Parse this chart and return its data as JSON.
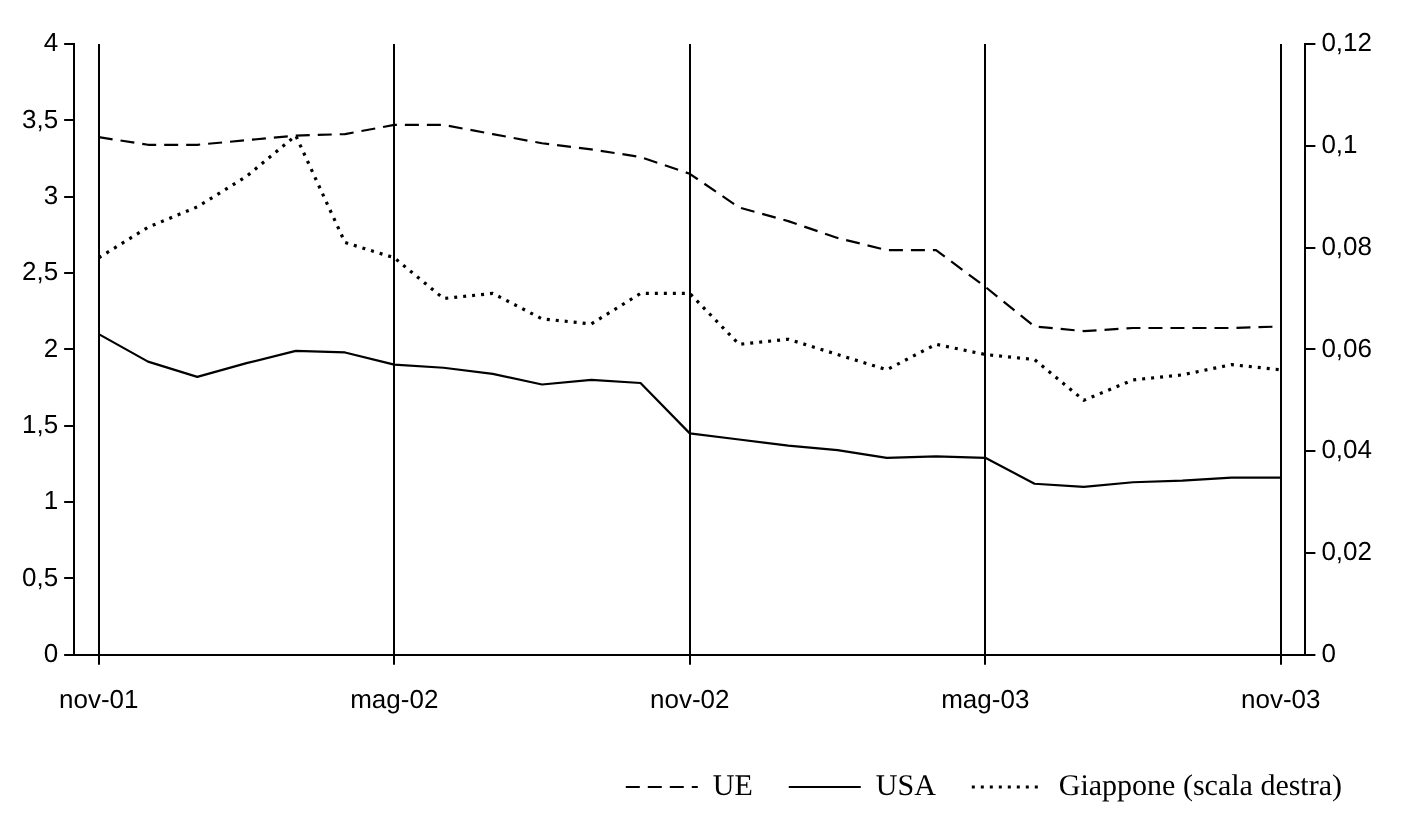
{
  "chart_data": {
    "type": "line",
    "categories": [
      "nov-01",
      null,
      null,
      null,
      null,
      null,
      "mag-02",
      null,
      null,
      null,
      null,
      null,
      "nov-02",
      null,
      null,
      null,
      null,
      null,
      "mag-03",
      null,
      null,
      null,
      null,
      null,
      "nov-03"
    ],
    "ylim": [
      0,
      4
    ],
    "yticks": [
      0,
      {
        "value": 0.5,
        "label": "0,5"
      },
      1,
      {
        "value": 1.5,
        "label": "1,5"
      },
      2,
      {
        "value": 2.5,
        "label": "2,5"
      },
      3,
      {
        "value": 3.5,
        "label": "3,5"
      },
      4
    ],
    "y2lim": [
      0,
      0.12
    ],
    "y2ticks": [
      0,
      {
        "value": 0.02,
        "label": "0,02"
      },
      {
        "value": 0.04,
        "label": "0,04"
      },
      {
        "value": 0.06,
        "label": "0,06"
      },
      {
        "value": 0.08,
        "label": "0,08"
      },
      {
        "value": 0.1,
        "label": "0,1"
      },
      {
        "value": 0.12,
        "label": "0,12"
      }
    ],
    "series": [
      {
        "name": "UE",
        "color": "#000000",
        "line_style": "dashed",
        "values": [
          3.39,
          3.34,
          3.34,
          3.37,
          3.4,
          3.41,
          3.47,
          3.47,
          3.41,
          3.35,
          3.31,
          3.26,
          3.15,
          2.93,
          2.84,
          2.73,
          2.65,
          2.65,
          2.41,
          2.15,
          2.12,
          2.14,
          2.14,
          2.14,
          2.15
        ]
      },
      {
        "name": "USA",
        "color": "#000000",
        "line_style": "solid",
        "values": [
          2.1,
          1.92,
          1.82,
          1.91,
          1.99,
          1.98,
          1.9,
          1.88,
          1.84,
          1.77,
          1.8,
          1.78,
          1.45,
          1.41,
          1.37,
          1.34,
          1.29,
          1.3,
          1.29,
          1.12,
          1.1,
          1.13,
          1.14,
          1.16,
          1.16
        ]
      },
      {
        "name": "Giappone (scala destra)",
        "color": "#000000",
        "line_style": "dotted",
        "axis": "y2",
        "values": [
          0.078,
          0.084,
          0.088,
          0.094,
          0.102,
          0.081,
          0.078,
          0.07,
          0.071,
          0.066,
          0.065,
          0.071,
          0.071,
          0.061,
          0.062,
          0.059,
          0.056,
          0.061,
          0.059,
          0.058,
          0.05,
          0.054,
          0.055,
          0.057,
          0.056
        ]
      }
    ],
    "marker": "none",
    "grid": "x",
    "legend": "bottom"
  }
}
